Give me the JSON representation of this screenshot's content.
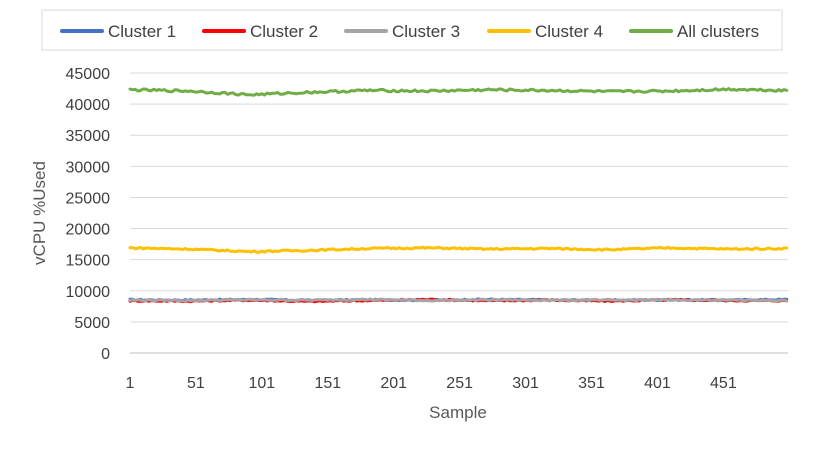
{
  "chart_data": {
    "type": "line",
    "title": "",
    "xlabel": "Sample",
    "ylabel": "vCPU %Used",
    "ylim": [
      0,
      45000
    ],
    "yticks": [
      0,
      5000,
      10000,
      15000,
      20000,
      25000,
      30000,
      35000,
      40000,
      45000
    ],
    "xlim": [
      1,
      500
    ],
    "xticks": [
      1,
      51,
      101,
      151,
      201,
      251,
      301,
      351,
      401,
      451
    ],
    "grid": true,
    "legend_position": "top",
    "series": [
      {
        "name": "Cluster 1",
        "color": "#4472c4",
        "values": [
          8550,
          8500,
          8600,
          8450,
          8550,
          8500,
          8600,
          8520,
          8480,
          8550,
          8500,
          8600
        ]
      },
      {
        "name": "Cluster 2",
        "color": "#ff0000",
        "values": [
          8400,
          8350,
          8500,
          8300,
          8450,
          8600,
          8400,
          8500,
          8350,
          8550,
          8450,
          8400
        ]
      },
      {
        "name": "Cluster 3",
        "color": "#a5a5a5",
        "values": [
          8500,
          8450,
          8550,
          8500,
          8600,
          8450,
          8550,
          8500,
          8480,
          8550,
          8500,
          8450
        ]
      },
      {
        "name": "Cluster 4",
        "color": "#ffc000",
        "values": [
          16900,
          16700,
          16300,
          16500,
          16800,
          16900,
          16700,
          16800,
          16600,
          16900,
          16700,
          16800
        ]
      },
      {
        "name": "All clusters",
        "color": "#70ad47",
        "values": [
          42300,
          42100,
          41500,
          41900,
          42200,
          42100,
          42300,
          42200,
          42000,
          42100,
          42400,
          42200
        ]
      }
    ]
  }
}
